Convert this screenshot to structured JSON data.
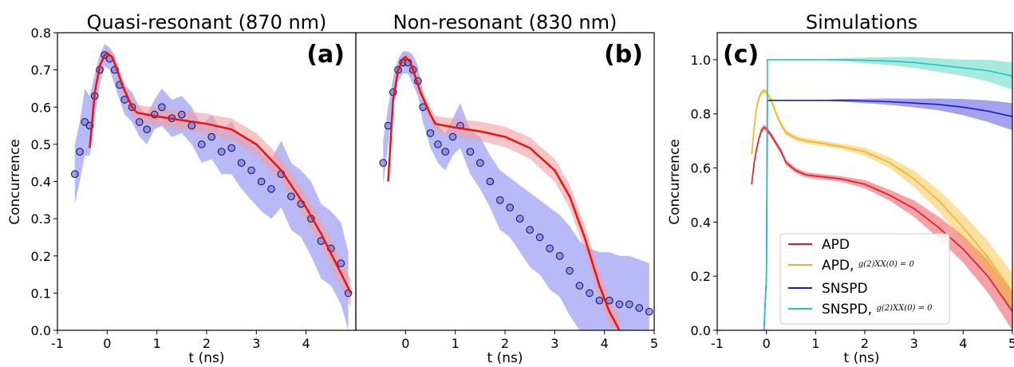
{
  "chart_data": [
    {
      "type": "scatter",
      "panel_label": "(a)",
      "title": "Quasi-resonant (870 nm)",
      "xlabel": "t (ns)",
      "ylabel": "Concurrence",
      "xlim": [
        -1,
        5
      ],
      "ylim": [
        0,
        0.8
      ],
      "xticks": [
        "-1",
        "0",
        "1",
        "2",
        "3",
        "4"
      ],
      "yticks": [
        "0.0",
        "0.1",
        "0.2",
        "0.3",
        "0.4",
        "0.5",
        "0.6",
        "0.7",
        "0.8"
      ],
      "colors": {
        "points": "#2020c0",
        "band": "#7f7ff0",
        "model": "#ee1111",
        "model_band": "#f0a0a0"
      },
      "series": [
        {
          "kind": "model",
          "x": [
            -0.35,
            -0.25,
            -0.15,
            -0.05,
            0.0,
            0.1,
            0.2,
            0.3,
            0.4,
            0.5,
            0.6,
            0.8,
            1.0,
            1.5,
            2.0,
            2.5,
            3.0,
            3.5,
            4.0,
            4.3,
            4.6,
            4.9
          ],
          "y": [
            0.49,
            0.64,
            0.71,
            0.74,
            0.745,
            0.735,
            0.7,
            0.66,
            0.63,
            0.6,
            0.585,
            0.58,
            0.575,
            0.565,
            0.555,
            0.54,
            0.5,
            0.43,
            0.33,
            0.26,
            0.18,
            0.1
          ]
        },
        {
          "kind": "data",
          "x": [
            -0.65,
            -0.55,
            -0.45,
            -0.35,
            -0.25,
            -0.15,
            -0.05,
            0.05,
            0.15,
            0.25,
            0.35,
            0.5,
            0.65,
            0.8,
            0.95,
            1.1,
            1.3,
            1.5,
            1.7,
            1.9,
            2.1,
            2.3,
            2.5,
            2.7,
            2.9,
            3.1,
            3.3,
            3.5,
            3.7,
            3.9,
            4.1,
            4.3,
            4.5,
            4.7,
            4.85
          ],
          "y": [
            0.42,
            0.48,
            0.56,
            0.55,
            0.63,
            0.7,
            0.74,
            0.73,
            0.7,
            0.66,
            0.62,
            0.6,
            0.56,
            0.54,
            0.58,
            0.6,
            0.57,
            0.58,
            0.55,
            0.5,
            0.52,
            0.48,
            0.49,
            0.45,
            0.43,
            0.4,
            0.38,
            0.42,
            0.36,
            0.34,
            0.3,
            0.24,
            0.22,
            0.18,
            0.1
          ],
          "err": [
            0.08,
            0.08,
            0.09,
            0.08,
            0.06,
            0.04,
            0.03,
            0.03,
            0.04,
            0.04,
            0.04,
            0.04,
            0.04,
            0.04,
            0.04,
            0.05,
            0.05,
            0.05,
            0.05,
            0.05,
            0.06,
            0.06,
            0.07,
            0.07,
            0.08,
            0.08,
            0.08,
            0.09,
            0.09,
            0.09,
            0.1,
            0.1,
            0.1,
            0.11,
            0.11
          ]
        }
      ]
    },
    {
      "type": "scatter",
      "panel_label": "(b)",
      "title": "Non-resonant (830 nm)",
      "xlabel": "t (ns)",
      "ylabel": "",
      "xlim": [
        -1,
        5
      ],
      "ylim": [
        0,
        0.8
      ],
      "xticks": [
        "0",
        "1",
        "2",
        "3",
        "4",
        "5"
      ],
      "colors": {
        "points": "#2020c0",
        "band": "#7f7ff0",
        "model": "#ee1111",
        "model_band": "#f0a0a0"
      },
      "series": [
        {
          "kind": "model",
          "x": [
            -0.35,
            -0.25,
            -0.15,
            -0.05,
            0.0,
            0.1,
            0.2,
            0.3,
            0.4,
            0.5,
            0.6,
            0.8,
            1.0,
            1.5,
            2.0,
            2.5,
            3.0,
            3.3,
            3.6,
            3.9,
            4.1,
            4.3
          ],
          "y": [
            0.4,
            0.62,
            0.7,
            0.73,
            0.735,
            0.72,
            0.68,
            0.64,
            0.61,
            0.58,
            0.555,
            0.55,
            0.545,
            0.535,
            0.52,
            0.49,
            0.43,
            0.36,
            0.25,
            0.12,
            0.05,
            0.0
          ]
        },
        {
          "kind": "data",
          "x": [
            -0.45,
            -0.35,
            -0.25,
            -0.15,
            -0.05,
            0.05,
            0.15,
            0.25,
            0.35,
            0.5,
            0.65,
            0.8,
            0.95,
            1.1,
            1.3,
            1.5,
            1.7,
            1.9,
            2.1,
            2.3,
            2.5,
            2.7,
            2.9,
            3.1,
            3.3,
            3.5,
            3.7,
            3.9,
            4.1,
            4.3,
            4.5,
            4.7,
            4.9
          ],
          "y": [
            0.45,
            0.55,
            0.64,
            0.7,
            0.72,
            0.72,
            0.7,
            0.67,
            0.6,
            0.53,
            0.5,
            0.48,
            0.52,
            0.55,
            0.48,
            0.45,
            0.4,
            0.35,
            0.33,
            0.3,
            0.27,
            0.25,
            0.22,
            0.2,
            0.16,
            0.12,
            0.1,
            0.08,
            0.08,
            0.07,
            0.07,
            0.06,
            0.05
          ],
          "err": [
            0.06,
            0.05,
            0.04,
            0.03,
            0.03,
            0.03,
            0.04,
            0.04,
            0.04,
            0.04,
            0.05,
            0.05,
            0.05,
            0.06,
            0.06,
            0.07,
            0.07,
            0.08,
            0.08,
            0.09,
            0.1,
            0.1,
            0.11,
            0.11,
            0.12,
            0.12,
            0.12,
            0.13,
            0.13,
            0.13,
            0.13,
            0.13,
            0.13
          ]
        }
      ]
    },
    {
      "type": "line",
      "panel_label": "(c)",
      "title": "Simulations",
      "xlabel": "t (ns)",
      "ylabel": "Concurrence",
      "xlim": [
        -1,
        5
      ],
      "ylim": [
        0,
        1.1
      ],
      "xticks": [
        "-1",
        "0",
        "1",
        "2",
        "3",
        "4",
        "5"
      ],
      "yticks": [
        "0.0",
        "0.2",
        "0.4",
        "0.6",
        "0.8",
        "1.0"
      ],
      "legend_position": "lower-left",
      "series": [
        {
          "name": "APD",
          "name_sup": "",
          "color": "#e8141e",
          "x": [
            -0.3,
            -0.25,
            -0.2,
            -0.15,
            -0.1,
            -0.05,
            0.0,
            0.1,
            0.2,
            0.3,
            0.4,
            0.6,
            0.8,
            1.0,
            1.5,
            2.0,
            2.5,
            3.0,
            3.5,
            4.0,
            4.5,
            5.0
          ],
          "y": [
            0.54,
            0.62,
            0.67,
            0.71,
            0.74,
            0.75,
            0.745,
            0.72,
            0.69,
            0.66,
            0.62,
            0.59,
            0.575,
            0.57,
            0.56,
            0.54,
            0.5,
            0.45,
            0.38,
            0.3,
            0.2,
            0.07
          ],
          "band": [
            0.0,
            0.0,
            0.01,
            0.01,
            0.01,
            0.01,
            0.01,
            0.01,
            0.01,
            0.01,
            0.01,
            0.01,
            0.01,
            0.01,
            0.01,
            0.015,
            0.02,
            0.03,
            0.04,
            0.05,
            0.06,
            0.07
          ]
        },
        {
          "name": "APD, ",
          "name_sup": "g(2)XX(0) = 0",
          "color": "#f2b416",
          "x": [
            -0.3,
            -0.25,
            -0.2,
            -0.15,
            -0.1,
            -0.05,
            0.0,
            0.1,
            0.2,
            0.3,
            0.4,
            0.6,
            0.8,
            1.0,
            1.5,
            2.0,
            2.5,
            3.0,
            3.5,
            4.0,
            4.5,
            5.0
          ],
          "y": [
            0.65,
            0.75,
            0.82,
            0.86,
            0.88,
            0.885,
            0.88,
            0.85,
            0.8,
            0.76,
            0.73,
            0.71,
            0.7,
            0.695,
            0.68,
            0.66,
            0.62,
            0.56,
            0.48,
            0.38,
            0.27,
            0.14
          ],
          "band": [
            0.0,
            0.0,
            0.01,
            0.01,
            0.01,
            0.01,
            0.01,
            0.01,
            0.01,
            0.01,
            0.01,
            0.01,
            0.01,
            0.01,
            0.01,
            0.015,
            0.02,
            0.03,
            0.04,
            0.05,
            0.06,
            0.07
          ]
        },
        {
          "name": "SNSPD",
          "name_sup": "",
          "color": "#1a1ad2",
          "x": [
            -0.05,
            0.0,
            0.02,
            0.05,
            0.5,
            1.0,
            1.5,
            2.0,
            2.5,
            3.0,
            3.5,
            4.0,
            4.5,
            5.0
          ],
          "y": [
            0.0,
            0.2,
            0.85,
            0.85,
            0.85,
            0.85,
            0.85,
            0.848,
            0.845,
            0.84,
            0.835,
            0.825,
            0.81,
            0.79
          ],
          "band": [
            0.0,
            0.0,
            0.0,
            0.0,
            0.0,
            0.0,
            0.005,
            0.008,
            0.012,
            0.016,
            0.022,
            0.03,
            0.04,
            0.05
          ]
        },
        {
          "name": "SNSPD, ",
          "name_sup": "g(2)XX(0) = 0",
          "color": "#1ec8b4",
          "x": [
            -0.05,
            0.0,
            0.02,
            0.05,
            0.5,
            1.0,
            1.5,
            2.0,
            2.5,
            3.0,
            3.5,
            4.0,
            4.5,
            5.0
          ],
          "y": [
            0.0,
            0.2,
            1.0,
            1.0,
            1.0,
            1.0,
            1.0,
            0.998,
            0.995,
            0.99,
            0.98,
            0.97,
            0.96,
            0.94
          ],
          "band": [
            0.0,
            0.0,
            0.0,
            0.0,
            0.0,
            0.0,
            0.005,
            0.01,
            0.015,
            0.02,
            0.025,
            0.03,
            0.04,
            0.05
          ]
        }
      ]
    }
  ]
}
